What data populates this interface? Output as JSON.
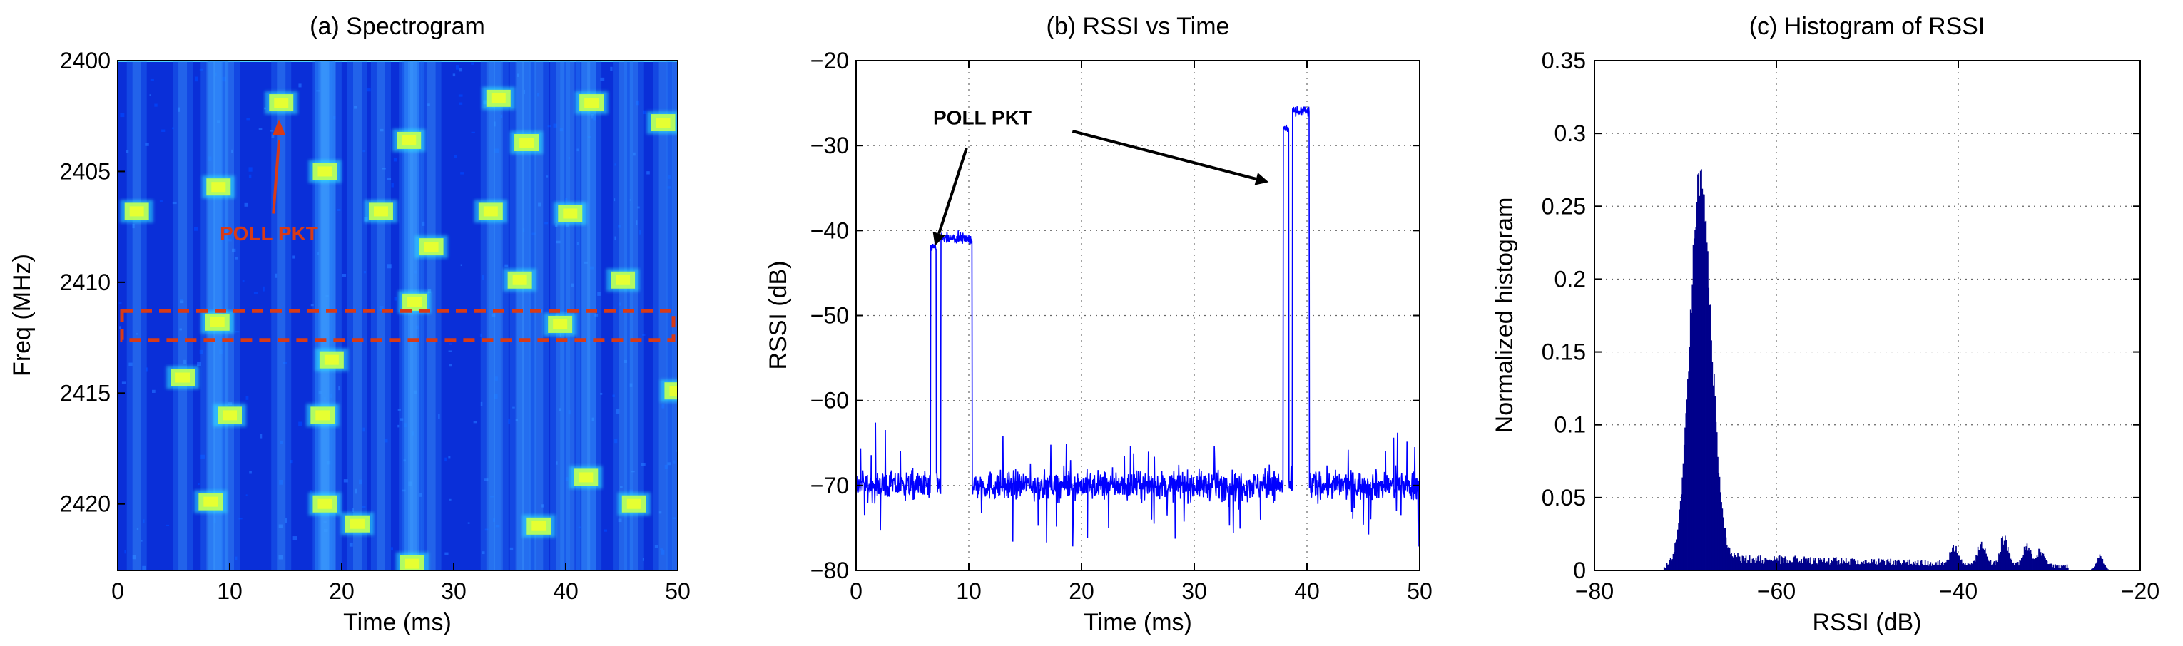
{
  "chart_data": [
    {
      "id": "spectrogram",
      "type": "heatmap",
      "title": "(a) Spectrogram",
      "xlabel": "Time (ms)",
      "ylabel": "Freq (MHz)",
      "xlim": [
        0,
        50
      ],
      "ylim": [
        2400,
        2423
      ],
      "xticks": [
        0,
        10,
        20,
        30,
        40,
        50
      ],
      "yticks": [
        2400,
        2405,
        2410,
        2415,
        2420
      ],
      "annotation": "POLL PKT",
      "annotation_color": "#d83a16",
      "highlight_band": [
        2411.3,
        2412.6
      ],
      "background_color": "#0a2fd8",
      "blocks": [
        {
          "t": 14.6,
          "f": 2401.9
        },
        {
          "t": 34.0,
          "f": 2401.7
        },
        {
          "t": 42.3,
          "f": 2401.9
        },
        {
          "t": 48.7,
          "f": 2402.8
        },
        {
          "t": 26.0,
          "f": 2403.6
        },
        {
          "t": 36.5,
          "f": 2403.7
        },
        {
          "t": 9.0,
          "f": 2405.7
        },
        {
          "t": 18.5,
          "f": 2405.0
        },
        {
          "t": 1.7,
          "f": 2406.8
        },
        {
          "t": 23.5,
          "f": 2406.8
        },
        {
          "t": 33.3,
          "f": 2406.8
        },
        {
          "t": 40.4,
          "f": 2406.9
        },
        {
          "t": 28.0,
          "f": 2408.4
        },
        {
          "t": 35.9,
          "f": 2409.9
        },
        {
          "t": 45.1,
          "f": 2409.9
        },
        {
          "t": 26.5,
          "f": 2410.9
        },
        {
          "t": 8.9,
          "f": 2411.8
        },
        {
          "t": 39.5,
          "f": 2411.9
        },
        {
          "t": 19.1,
          "f": 2413.5
        },
        {
          "t": 5.8,
          "f": 2414.3
        },
        {
          "t": 49.9,
          "f": 2414.9
        },
        {
          "t": 10.0,
          "f": 2416.0
        },
        {
          "t": 18.3,
          "f": 2416.0
        },
        {
          "t": 41.8,
          "f": 2418.8
        },
        {
          "t": 8.3,
          "f": 2419.9
        },
        {
          "t": 18.5,
          "f": 2420.0
        },
        {
          "t": 46.1,
          "f": 2420.0
        },
        {
          "t": 21.4,
          "f": 2420.9
        },
        {
          "t": 37.6,
          "f": 2421.0
        },
        {
          "t": 26.3,
          "f": 2422.7
        }
      ]
    },
    {
      "id": "rssi-time",
      "type": "line",
      "title": "(b) RSSI vs Time",
      "xlabel": "Time (ms)",
      "ylabel": "RSSI (dB)",
      "xlim": [
        0,
        50
      ],
      "ylim": [
        -80,
        -20
      ],
      "xticks": [
        0,
        10,
        20,
        30,
        40,
        50
      ],
      "yticks": [
        -80,
        -70,
        -60,
        -50,
        -40,
        -30,
        -20
      ],
      "grid": true,
      "line_color": "#0000ff",
      "noise_floor": -70,
      "annotation": "POLL PKT",
      "segments": [
        {
          "t0": 0,
          "t1": 6.6,
          "level": -70
        },
        {
          "t0": 6.6,
          "t1": 7.1,
          "level": -42
        },
        {
          "t0": 7.1,
          "t1": 7.5,
          "level": -70
        },
        {
          "t0": 7.5,
          "t1": 10.3,
          "level": -41
        },
        {
          "t0": 10.3,
          "t1": 37.9,
          "level": -70
        },
        {
          "t0": 37.9,
          "t1": 38.4,
          "level": -28
        },
        {
          "t0": 38.4,
          "t1": 38.7,
          "level": -70
        },
        {
          "t0": 38.7,
          "t1": 40.2,
          "level": -26
        },
        {
          "t0": 40.2,
          "t1": 50,
          "level": -70
        }
      ]
    },
    {
      "id": "rssi-histogram",
      "type": "bar",
      "title": "(c) Histogram of RSSI",
      "xlabel": "RSSI (dB)",
      "ylabel": "Normalized histogram",
      "xlim": [
        -80,
        -20
      ],
      "ylim": [
        0,
        0.35
      ],
      "xticks": [
        -80,
        -60,
        -40,
        -20
      ],
      "yticks": [
        0,
        0.05,
        0.1,
        0.15,
        0.2,
        0.25,
        0.3,
        0.35
      ],
      "grid": true,
      "bar_color": "#00008b",
      "peak": {
        "x": -68.4,
        "value": 0.29
      },
      "tail_level": 0.01,
      "secondary_peaks": [
        {
          "x": -40.5,
          "value": 0.014
        },
        {
          "x": -37.5,
          "value": 0.018
        },
        {
          "x": -35.0,
          "value": 0.022
        },
        {
          "x": -32.5,
          "value": 0.016
        },
        {
          "x": -31.0,
          "value": 0.012
        },
        {
          "x": -24.5,
          "value": 0.012
        }
      ]
    }
  ]
}
